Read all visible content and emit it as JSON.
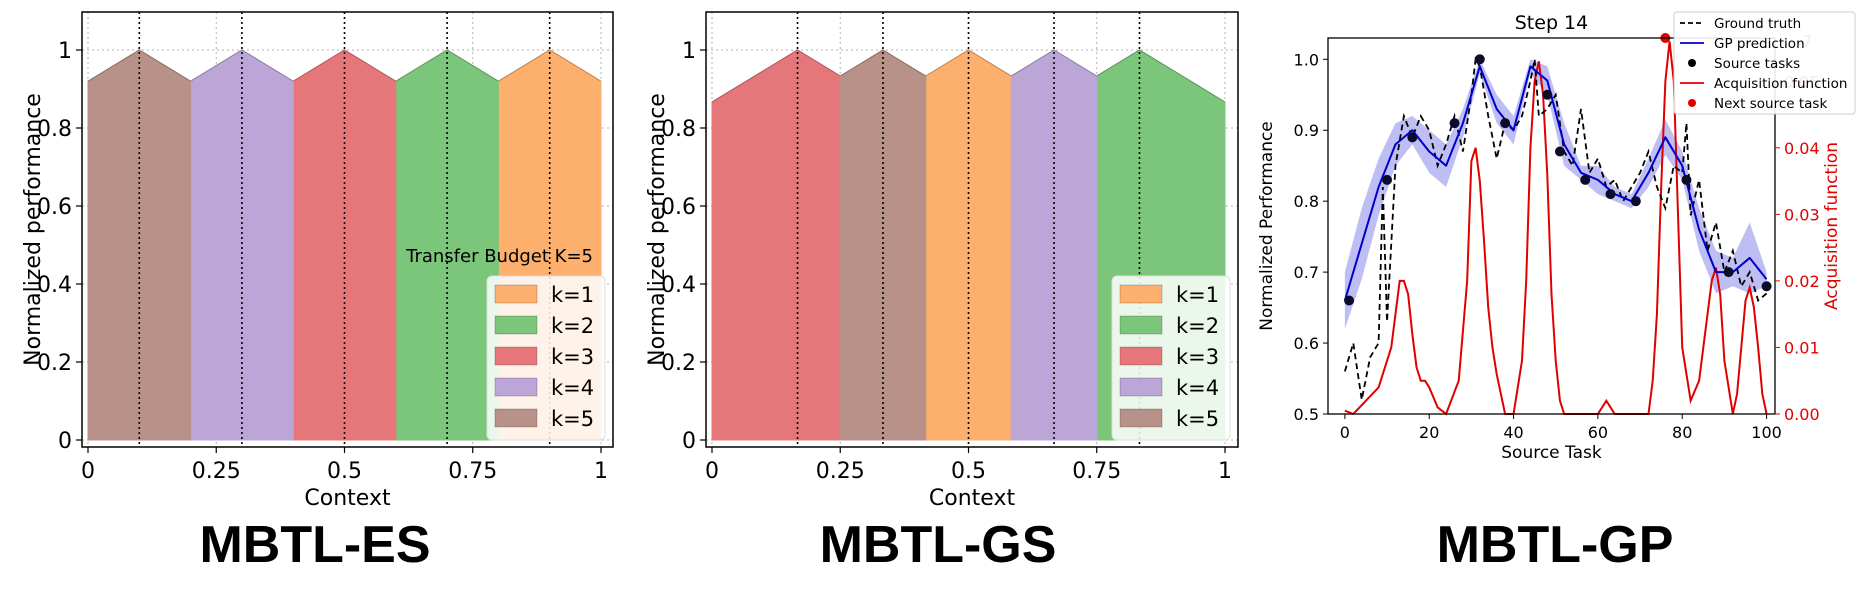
{
  "colors": {
    "k1": "#fdb06d",
    "k2": "#7cc67b",
    "k3": "#e5777a",
    "k4": "#bca6d8",
    "k5": "#b89189",
    "gt": "#000000",
    "gp": "#0000cc",
    "gp_band": "#b3b3f2",
    "acq": "#e00000",
    "next": "#e00000",
    "src": "#0b0b2a"
  },
  "titles": {
    "es": "MBTL-ES",
    "gs": "MBTL-GS",
    "gp": "MBTL-GP"
  },
  "chart_data": [
    {
      "type": "area",
      "name": "MBTL-ES",
      "xlabel": "Context",
      "ylabel": "Normalized performance",
      "xlim": [
        0,
        1
      ],
      "ylim": [
        0,
        1
      ],
      "xticks": [
        0,
        0.25,
        0.5,
        0.75,
        1
      ],
      "xtick_labels": [
        "0",
        "0.25",
        "0.5",
        "0.75",
        "1"
      ],
      "yticks": [
        0,
        0.2,
        0.4,
        0.6,
        0.8,
        1
      ],
      "ytick_labels": [
        "0",
        "0.2",
        "0.4",
        "0.6",
        "0.8",
        "1"
      ],
      "vlines": [
        0.1,
        0.3,
        0.5,
        0.7,
        0.9
      ],
      "annotation": "Transfer Budget K=5",
      "legend": [
        "k=1",
        "k=2",
        "k=3",
        "k=4",
        "k=5"
      ],
      "legend_position": "lower-right",
      "series": [
        {
          "name": "k=1",
          "x": [
            0,
            0.9,
            1
          ],
          "y": [
            0.28,
            1,
            0.92
          ]
        },
        {
          "name": "k=2",
          "x": [
            0,
            0.7,
            0.8
          ],
          "y": [
            0.44,
            1,
            0.92
          ]
        },
        {
          "name": "k=3",
          "x": [
            0,
            0.5,
            0.6
          ],
          "y": [
            0.6,
            1,
            0.92
          ]
        },
        {
          "name": "k=4",
          "x": [
            0,
            0.3,
            0.4
          ],
          "y": [
            0.76,
            1,
            0.92
          ]
        },
        {
          "name": "k=5",
          "x": [
            0,
            0.1,
            0.2
          ],
          "y": [
            0.92,
            1,
            0.92
          ]
        }
      ]
    },
    {
      "type": "area",
      "name": "MBTL-GS",
      "xlabel": "Context",
      "ylabel": "Normalized performance",
      "xlim": [
        0,
        1
      ],
      "ylim": [
        0,
        1
      ],
      "xticks": [
        0,
        0.25,
        0.5,
        0.75,
        1
      ],
      "xtick_labels": [
        "0",
        "0.25",
        "0.5",
        "0.75",
        "1"
      ],
      "yticks": [
        0,
        0.2,
        0.4,
        0.6,
        0.8,
        1
      ],
      "ytick_labels": [
        "0",
        "0.2",
        "0.4",
        "0.6",
        "0.8",
        "1"
      ],
      "vlines": [
        0.1667,
        0.3333,
        0.5,
        0.6667,
        0.8333
      ],
      "legend": [
        "k=1",
        "k=2",
        "k=3",
        "k=4",
        "k=5"
      ],
      "legend_position": "lower-right",
      "series": [
        {
          "name": "k=1",
          "x": [
            0,
            0.5,
            1
          ],
          "y": [
            0.6,
            1,
            0.6
          ]
        },
        {
          "name": "k=2",
          "x": [
            0.6667,
            0.8333,
            1
          ],
          "y": [
            0.8667,
            1,
            0.8667
          ]
        },
        {
          "name": "k=3",
          "x": [
            0,
            0.1667,
            0.3333
          ],
          "y": [
            0.8667,
            1,
            0.8667
          ]
        },
        {
          "name": "k=4",
          "x": [
            0.5833,
            0.6667,
            0.75
          ],
          "y": [
            0.9333,
            1,
            0.9333
          ]
        },
        {
          "name": "k=5",
          "x": [
            0.25,
            0.3333,
            0.4167
          ],
          "y": [
            0.9333,
            1,
            0.9333
          ]
        }
      ]
    },
    {
      "type": "line",
      "name": "MBTL-GP",
      "title": "Step 14",
      "xlabel": "Source Task",
      "ylabel": "Normalized Performance",
      "y2label": "Acquisition function",
      "xlim": [
        -4,
        102
      ],
      "ylim": [
        0.5,
        1.03
      ],
      "y2lim": [
        0,
        0.0565
      ],
      "xticks": [
        0,
        20,
        40,
        60,
        80,
        100
      ],
      "xtick_labels": [
        "0",
        "20",
        "40",
        "60",
        "80",
        "100"
      ],
      "yticks": [
        0.5,
        0.6,
        0.7,
        0.8,
        0.9,
        1.0
      ],
      "ytick_labels": [
        "0.5",
        "0.6",
        "0.7",
        "0.8",
        "0.9",
        "1.0"
      ],
      "y2ticks": [
        0,
        0.01,
        0.02,
        0.03,
        0.04,
        0.05
      ],
      "y2tick_labels": [
        "0.00",
        "0.01",
        "0.02",
        "0.03",
        "0.04",
        "0.05"
      ],
      "y2tick_partial": "7",
      "legend": [
        "Ground truth",
        "GP prediction",
        "Source tasks",
        "Acquisition function",
        "Next source task"
      ],
      "legend_position": "top-right",
      "ground_truth": {
        "x": [
          0,
          2,
          4,
          6,
          8,
          9,
          10,
          12,
          14,
          16,
          18,
          20,
          22,
          24,
          26,
          28,
          30,
          31,
          32,
          34,
          36,
          38,
          40,
          42,
          44,
          45,
          46,
          48,
          50,
          52,
          54,
          56,
          58,
          60,
          62,
          64,
          66,
          68,
          70,
          72,
          74,
          76,
          78,
          80,
          81,
          82,
          84,
          86,
          88,
          90,
          92,
          94,
          96,
          98,
          100
        ],
        "y": [
          0.56,
          0.6,
          0.52,
          0.58,
          0.6,
          0.82,
          0.63,
          0.85,
          0.92,
          0.89,
          0.92,
          0.9,
          0.85,
          0.88,
          0.92,
          0.87,
          0.95,
          1.0,
          0.99,
          0.92,
          0.86,
          0.91,
          0.9,
          0.92,
          0.97,
          1.0,
          0.92,
          0.93,
          0.95,
          0.87,
          0.85,
          0.93,
          0.84,
          0.86,
          0.82,
          0.83,
          0.8,
          0.82,
          0.84,
          0.87,
          0.82,
          0.79,
          0.85,
          0.84,
          0.91,
          0.78,
          0.83,
          0.73,
          0.77,
          0.7,
          0.73,
          0.68,
          0.7,
          0.66,
          0.67
        ]
      },
      "gp_prediction": {
        "x": [
          0,
          4,
          8,
          12,
          16,
          20,
          24,
          28,
          32,
          36,
          40,
          44,
          48,
          52,
          56,
          60,
          64,
          68,
          72,
          76,
          80,
          84,
          88,
          92,
          96,
          100
        ],
        "y": [
          0.66,
          0.74,
          0.82,
          0.88,
          0.9,
          0.87,
          0.85,
          0.91,
          0.99,
          0.93,
          0.9,
          0.99,
          0.97,
          0.88,
          0.84,
          0.83,
          0.81,
          0.8,
          0.84,
          0.89,
          0.85,
          0.76,
          0.7,
          0.7,
          0.72,
          0.69
        ],
        "band": [
          0.04,
          0.05,
          0.04,
          0.03,
          0.02,
          0.03,
          0.03,
          0.02,
          0.01,
          0.02,
          0.02,
          0.01,
          0.02,
          0.03,
          0.01,
          0.02,
          0.01,
          0.01,
          0.02,
          0.025,
          0.02,
          0.03,
          0.03,
          0.02,
          0.05,
          0.01
        ]
      },
      "source_tasks": {
        "x": [
          1,
          10,
          16,
          26,
          32,
          38,
          48,
          51,
          57,
          63,
          69,
          81,
          91,
          100
        ],
        "y": [
          0.66,
          0.83,
          0.89,
          0.91,
          1.0,
          0.91,
          0.95,
          0.87,
          0.83,
          0.81,
          0.8,
          0.83,
          0.7,
          0.68
        ]
      },
      "acquisition": {
        "x": [
          0,
          2,
          5,
          8,
          11,
          13,
          14,
          15,
          16,
          17,
          18,
          19,
          20,
          22,
          24,
          27,
          29,
          30,
          31,
          32,
          33,
          34,
          35,
          36,
          38,
          40,
          42,
          43,
          44,
          45,
          46,
          47,
          48,
          49,
          50,
          51,
          52,
          54,
          56,
          58,
          60,
          62,
          64,
          66,
          68,
          70,
          72,
          73,
          74,
          75,
          76,
          77,
          78,
          79,
          80,
          82,
          84,
          86,
          87,
          88,
          89,
          90,
          92,
          93,
          94,
          95,
          96,
          97,
          98,
          99,
          100
        ],
        "y": [
          0.0005,
          0,
          0.002,
          0.004,
          0.01,
          0.02,
          0.02,
          0.018,
          0.012,
          0.007,
          0.005,
          0.005,
          0.004,
          0.001,
          0,
          0.005,
          0.02,
          0.038,
          0.04,
          0.035,
          0.026,
          0.016,
          0.01,
          0.006,
          0,
          0,
          0.008,
          0.02,
          0.04,
          0.05,
          0.053,
          0.048,
          0.036,
          0.018,
          0.008,
          0.002,
          0,
          0,
          0,
          0,
          0,
          0.002,
          0,
          0,
          0,
          0,
          0,
          0.005,
          0.015,
          0.034,
          0.05,
          0.056,
          0.05,
          0.03,
          0.01,
          0.002,
          0.005,
          0.015,
          0.02,
          0.022,
          0.018,
          0.008,
          0,
          0.003,
          0.01,
          0.017,
          0.019,
          0.016,
          0.01,
          0.003,
          0
        ]
      },
      "next_source_task": {
        "x": 76,
        "y": 0.0565
      }
    }
  ]
}
